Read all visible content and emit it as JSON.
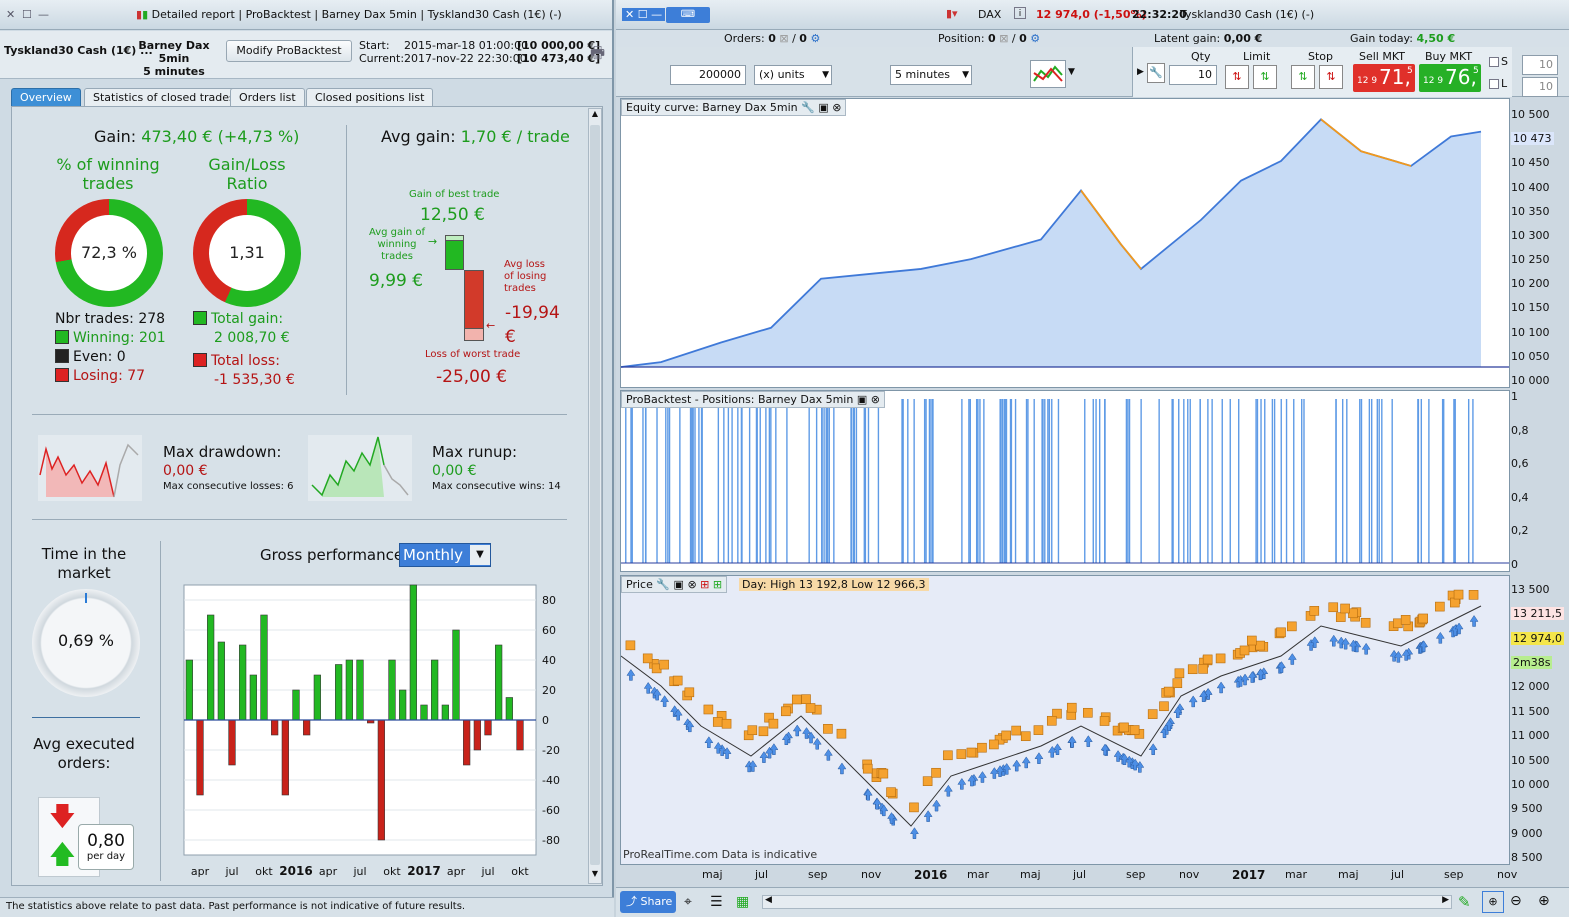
{
  "left": {
    "title_items": [
      "Detailed report",
      "ProBacktest",
      "Barney Dax 5min",
      "Tyskland30 Cash (1€) (-)"
    ],
    "instrument": "Tyskland30 Cash (1€) ...",
    "system_name": "Barney Dax 5min",
    "timeframe": "5 minutes",
    "modify_button": "Modify ProBacktest",
    "start_label": "Start:",
    "start_date": "2015-mar-18 01:00:00",
    "start_value": "[10 000,00 €]",
    "current_label": "Current:",
    "current_date": "2017-nov-22 22:30:00",
    "current_value": "[10 473,40 €]",
    "tabs": [
      "Overview",
      "Statistics of closed trades",
      "Orders list",
      "Closed positions list"
    ],
    "gain_label": "Gain:",
    "gain_value": "473,40 € (+4,73 %)",
    "winning_title": "% of winning trades",
    "winning_pct": "72,3 %",
    "winning_fraction": 0.723,
    "ratio_title": "Gain/Loss Ratio",
    "ratio_value": "1,31",
    "ratio_fraction": 0.567,
    "nbr_trades": "Nbr trades: 278",
    "winning": "Winning: 201",
    "even": "Even: 0",
    "losing": "Losing: 77",
    "total_gain_label": "Total gain:",
    "total_gain": "2 008,70 €",
    "total_loss_label": "Total loss:",
    "total_loss": "-1 535,30 €",
    "avg_gain_label": "Avg gain:",
    "avg_gain_value": "1,70 € / trade",
    "best_trade_label": "Gain of best trade",
    "best_trade": "12,50 €",
    "avg_win_label": "Avg gain of winning trades",
    "avg_win": "9,99 €",
    "avg_loss_label": "Avg loss of losing trades",
    "avg_loss": "-19,94 €",
    "worst_label": "Loss of worst trade",
    "worst_trade": "-25,00 €",
    "max_drawdown_label": "Max drawdown:",
    "max_drawdown": "0,00 €",
    "max_consec_losses": "Max consecutive losses: 6",
    "max_runup_label": "Max runup:",
    "max_runup": "0,00 €",
    "max_consec_wins": "Max consecutive wins: 14",
    "time_market_label": "Time in the market",
    "time_market": "0,69 %",
    "avg_orders_label": "Avg executed orders:",
    "avg_orders": "0,80",
    "per_day": "per day",
    "gross_perf_label": "Gross performance",
    "gross_perf_period": "Monthly",
    "footer": "The statistics above relate to past data. Past performance is not indicative of future results."
  },
  "right": {
    "instrument": "DAX",
    "price_change": "12 974,0 (-1,50%)",
    "time": "22:32:20",
    "market": "Tyskland30 Cash (1€) (-)",
    "orders_label": "Orders:",
    "orders_value": "0",
    "orders_value2": "0",
    "position_label": "Position:",
    "position_value": "0",
    "position_value2": "0",
    "latent_label": "Latent gain:",
    "latent_value": "0,00 €",
    "gain_today_label": "Gain today:",
    "gain_today_value": "4,50 €",
    "qty_input": "200000",
    "units_select": "(x) units",
    "interval_select": "5 minutes",
    "qty_label": "Qty",
    "qty_value": "10",
    "limit_label": "Limit",
    "stop_label": "Stop",
    "sell_label": "Sell MKT",
    "sell_small": "12 9",
    "sell_big": "71,",
    "sell_sup": "5",
    "buy_label": "Buy MKT",
    "buy_small": "12 9",
    "buy_big": "76,",
    "buy_sup": "5",
    "s_label": "S",
    "l_label": "L",
    "s_value": "10",
    "l_value": "10",
    "equity_title": "Equity curve: Barney Dax 5min",
    "positions_title": "ProBacktest - Positions: Barney Dax 5min",
    "price_title": "Price",
    "price_info": "Day: High 13 192,8 Low 12 966,3",
    "watermark": "ProRealTime.com  Data is indicative",
    "share_label": "Share",
    "equity_axis": [
      "10 500",
      "10 473",
      "10 450",
      "10 400",
      "10 350",
      "10 300",
      "10 250",
      "10 200",
      "10 150",
      "10 100",
      "10 050",
      "10 000"
    ],
    "positions_axis": [
      "1",
      "0,8",
      "0,6",
      "0,4",
      "0,2",
      "0"
    ],
    "price_axis": [
      "13 500",
      "13 211,5",
      "12 974,0",
      "2m38s",
      "12 000",
      "11 500",
      "11 000",
      "10 500",
      "10 000",
      "9 500",
      "9 000",
      "8 500"
    ],
    "x_labels": [
      "maj",
      "jul",
      "sep",
      "nov",
      "2016",
      "mar",
      "maj",
      "jul",
      "sep",
      "nov",
      "2017",
      "mar",
      "maj",
      "jul",
      "sep",
      "nov"
    ]
  },
  "chart_data": {
    "type": "bar",
    "title": "Gross performance",
    "categories": [
      "2015-03",
      "2015-04",
      "2015-05",
      "2015-06",
      "2015-07",
      "2015-08",
      "2015-09",
      "2015-10",
      "2015-11",
      "2015-12",
      "2016-01",
      "2016-02",
      "2016-03",
      "2016-04",
      "2016-05",
      "2016-06",
      "2016-07",
      "2016-08",
      "2016-09",
      "2016-10",
      "2016-11",
      "2016-12",
      "2017-01",
      "2017-02",
      "2017-03",
      "2017-04",
      "2017-05",
      "2017-06",
      "2017-07",
      "2017-08",
      "2017-09",
      "2017-10",
      "2017-11"
    ],
    "values": [
      40,
      -50,
      70,
      52,
      -30,
      50,
      30,
      70,
      -10,
      -50,
      20,
      -10,
      30,
      0,
      37,
      40,
      40,
      -2,
      -80,
      40,
      20,
      90,
      10,
      40,
      10,
      60,
      -30,
      -20,
      -10,
      50,
      15,
      -20,
      0
    ],
    "x_tick_labels": [
      "apr",
      "jul",
      "okt",
      "2016",
      "apr",
      "jul",
      "okt",
      "2017",
      "apr",
      "jul",
      "okt"
    ],
    "ylim": [
      -90,
      90
    ],
    "y_ticks": [
      80,
      60,
      40,
      20,
      0,
      -20,
      -40,
      -60,
      -80
    ],
    "colors": {
      "positive": "#22b822",
      "negative": "#c8221a"
    }
  }
}
